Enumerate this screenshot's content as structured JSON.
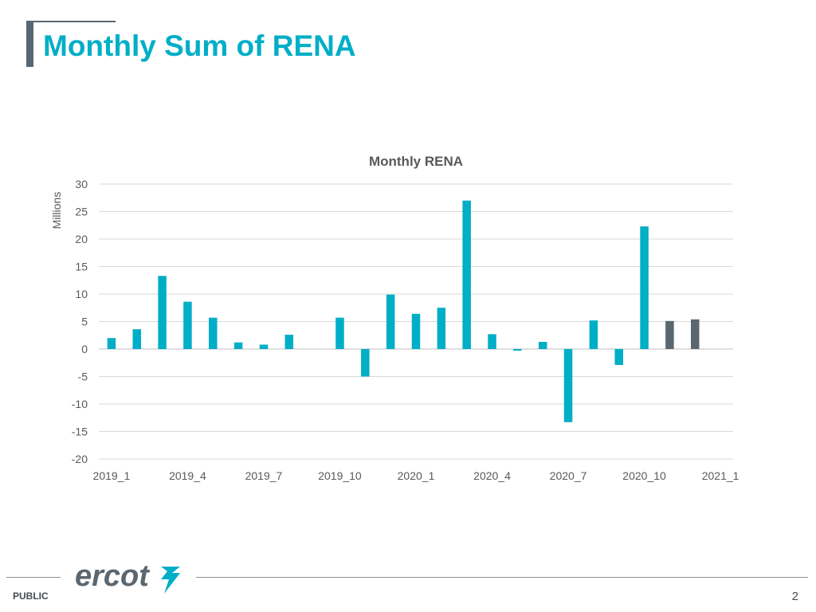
{
  "slide": {
    "title": "Monthly Sum of RENA",
    "footer_label": "PUBLIC",
    "page_number": "2",
    "logo_text": "ercot"
  },
  "colors": {
    "accent": "#00aec7",
    "actual_bar": "#00aec7",
    "forecast_bar": "#5b6770",
    "title_bar": "#5b6770",
    "text": "#595959",
    "grid": "#d9d9d9"
  },
  "chart_data": {
    "type": "bar",
    "title": "Monthly RENA",
    "ylabel": "Millions",
    "xlabel": "",
    "ylim": [
      -20,
      30
    ],
    "yticks": [
      30,
      25,
      20,
      15,
      10,
      5,
      0,
      -5,
      -10,
      -15,
      -20
    ],
    "grid": true,
    "categories": [
      "2019_1",
      "2019_2",
      "2019_3",
      "2019_4",
      "2019_5",
      "2019_6",
      "2019_7",
      "2019_8",
      "2019_9",
      "2019_10",
      "2019_11",
      "2019_12",
      "2020_1",
      "2020_2",
      "2020_3",
      "2020_4",
      "2020_5",
      "2020_6",
      "2020_7",
      "2020_8",
      "2020_9",
      "2020_10",
      "2020_11",
      "2020_12",
      "2021_1"
    ],
    "visible_tick_labels": [
      "2019_1",
      "2019_4",
      "2019_7",
      "2019_10",
      "2020_1",
      "2020_4",
      "2020_7",
      "2020_10",
      "2021_1"
    ],
    "values": [
      2.0,
      3.6,
      13.3,
      8.6,
      5.7,
      1.2,
      0.8,
      2.6,
      0,
      5.7,
      -5.0,
      9.9,
      6.4,
      7.5,
      27.0,
      2.7,
      -0.3,
      1.3,
      -13.3,
      5.2,
      -2.9,
      22.3,
      5.1,
      5.4,
      null
    ],
    "bar_status": [
      "actual",
      "actual",
      "actual",
      "actual",
      "actual",
      "actual",
      "actual",
      "actual",
      "actual",
      "actual",
      "actual",
      "actual",
      "actual",
      "actual",
      "actual",
      "actual",
      "actual",
      "actual",
      "actual",
      "actual",
      "actual",
      "actual",
      "estimate",
      "estimate",
      "estimate"
    ]
  }
}
